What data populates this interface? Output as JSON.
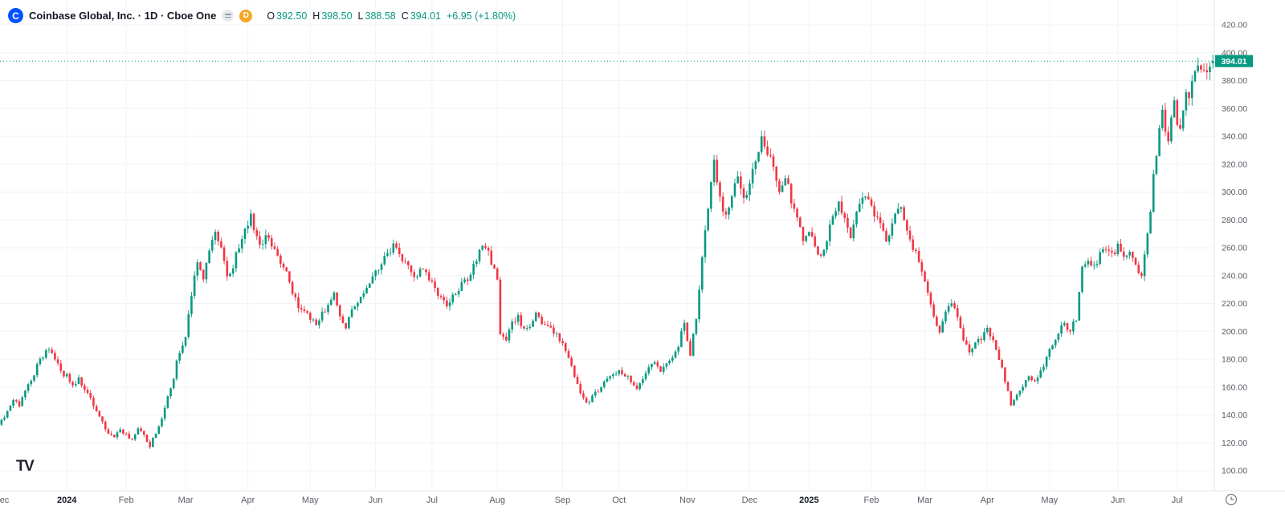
{
  "colors": {
    "up": "#089981",
    "down": "#f23645",
    "blue": "#0052ff",
    "orange": "#f5a623",
    "grid": "#f0f3fa",
    "axis_line": "#e0e3eb",
    "axis_text": "#5a5e66",
    "text": "#131722",
    "badge_text": "#ffffff"
  },
  "legend": {
    "logo_letter": "C",
    "title": "Coinbase Global, Inc. · 1D · Cboe One",
    "delayed_badge": "D",
    "ohlc": {
      "o_label": "O",
      "o": "392.50",
      "h_label": "H",
      "h": "398.50",
      "l_label": "L",
      "l": "388.58",
      "c_label": "C",
      "c": "394.01",
      "change": "+6.95 (+1.80%)"
    }
  },
  "footer": {
    "tv_logo": "TV"
  },
  "chart_data": {
    "type": "candlestick",
    "title": "Coinbase Global, Inc.",
    "interval": "1D",
    "exchange": "Cboe One",
    "last_price": 394.01,
    "last_candle": {
      "open": 392.5,
      "high": 398.5,
      "low": 388.58,
      "close": 394.01
    },
    "y_axis": {
      "ticks": [
        420,
        400,
        380,
        360,
        340,
        320,
        300,
        280,
        260,
        240,
        220,
        200,
        180,
        160,
        140,
        120,
        100
      ],
      "format": "0.00"
    },
    "x_axis": {
      "labels": [
        {
          "label": "ec",
          "day": 1
        },
        {
          "label": "2024",
          "day": 22,
          "year": true
        },
        {
          "label": "Feb",
          "day": 42
        },
        {
          "label": "Mar",
          "day": 62
        },
        {
          "label": "Apr",
          "day": 83
        },
        {
          "label": "May",
          "day": 104
        },
        {
          "label": "Jun",
          "day": 126
        },
        {
          "label": "Jul",
          "day": 145
        },
        {
          "label": "Aug",
          "day": 167
        },
        {
          "label": "Sep",
          "day": 189
        },
        {
          "label": "Oct",
          "day": 208
        },
        {
          "label": "Nov",
          "day": 231
        },
        {
          "label": "Dec",
          "day": 252
        },
        {
          "label": "2025",
          "day": 272,
          "year": true
        },
        {
          "label": "Feb",
          "day": 293
        },
        {
          "label": "Mar",
          "day": 311
        },
        {
          "label": "Apr",
          "day": 332
        },
        {
          "label": "May",
          "day": 353
        },
        {
          "label": "Jun",
          "day": 376
        },
        {
          "label": "Jul",
          "day": 396
        }
      ]
    },
    "total_days": 409,
    "price_path_anchors": [
      [
        0,
        136
      ],
      [
        2,
        143
      ],
      [
        4,
        150
      ],
      [
        6,
        147
      ],
      [
        8,
        156
      ],
      [
        10,
        166
      ],
      [
        12,
        175
      ],
      [
        14,
        183
      ],
      [
        16,
        187
      ],
      [
        18,
        179
      ],
      [
        20,
        171
      ],
      [
        22,
        168
      ],
      [
        24,
        161
      ],
      [
        26,
        166
      ],
      [
        28,
        157
      ],
      [
        30,
        151
      ],
      [
        32,
        143
      ],
      [
        34,
        134
      ],
      [
        36,
        128
      ],
      [
        38,
        125
      ],
      [
        40,
        129
      ],
      [
        42,
        126
      ],
      [
        44,
        121
      ],
      [
        46,
        131
      ],
      [
        48,
        126
      ],
      [
        50,
        118
      ],
      [
        52,
        127
      ],
      [
        54,
        139
      ],
      [
        56,
        152
      ],
      [
        58,
        168
      ],
      [
        60,
        186
      ],
      [
        62,
        198
      ],
      [
        64,
        225
      ],
      [
        66,
        251
      ],
      [
        68,
        237
      ],
      [
        70,
        257
      ],
      [
        72,
        269
      ],
      [
        74,
        261
      ],
      [
        76,
        237
      ],
      [
        78,
        247
      ],
      [
        80,
        261
      ],
      [
        82,
        272
      ],
      [
        84,
        283
      ],
      [
        86,
        268
      ],
      [
        88,
        262
      ],
      [
        90,
        270
      ],
      [
        92,
        257
      ],
      [
        94,
        251
      ],
      [
        96,
        243
      ],
      [
        98,
        229
      ],
      [
        100,
        217
      ],
      [
        102,
        213
      ],
      [
        104,
        209
      ],
      [
        106,
        205
      ],
      [
        108,
        213
      ],
      [
        110,
        219
      ],
      [
        112,
        226
      ],
      [
        114,
        209
      ],
      [
        116,
        204
      ],
      [
        118,
        215
      ],
      [
        120,
        223
      ],
      [
        122,
        229
      ],
      [
        124,
        237
      ],
      [
        126,
        243
      ],
      [
        128,
        249
      ],
      [
        130,
        255
      ],
      [
        132,
        261
      ],
      [
        134,
        257
      ],
      [
        136,
        249
      ],
      [
        138,
        243
      ],
      [
        140,
        239
      ],
      [
        142,
        245
      ],
      [
        144,
        239
      ],
      [
        146,
        231
      ],
      [
        148,
        225
      ],
      [
        150,
        220
      ],
      [
        152,
        225
      ],
      [
        154,
        231
      ],
      [
        156,
        236
      ],
      [
        158,
        241
      ],
      [
        160,
        251
      ],
      [
        162,
        261
      ],
      [
        164,
        255
      ],
      [
        166,
        245
      ],
      [
        167,
        239
      ],
      [
        168,
        199
      ],
      [
        170,
        195
      ],
      [
        172,
        205
      ],
      [
        174,
        211
      ],
      [
        176,
        201
      ],
      [
        178,
        205
      ],
      [
        180,
        211
      ],
      [
        182,
        207
      ],
      [
        184,
        203
      ],
      [
        186,
        199
      ],
      [
        188,
        194
      ],
      [
        190,
        185
      ],
      [
        192,
        175
      ],
      [
        194,
        163
      ],
      [
        196,
        151
      ],
      [
        198,
        149
      ],
      [
        200,
        156
      ],
      [
        202,
        161
      ],
      [
        204,
        165
      ],
      [
        206,
        169
      ],
      [
        208,
        173
      ],
      [
        210,
        169
      ],
      [
        212,
        164
      ],
      [
        214,
        160
      ],
      [
        216,
        167
      ],
      [
        218,
        175
      ],
      [
        220,
        178
      ],
      [
        222,
        171
      ],
      [
        224,
        175
      ],
      [
        226,
        181
      ],
      [
        228,
        191
      ],
      [
        230,
        205
      ],
      [
        232,
        183
      ],
      [
        234,
        209
      ],
      [
        236,
        254
      ],
      [
        238,
        289
      ],
      [
        240,
        324
      ],
      [
        242,
        297
      ],
      [
        244,
        281
      ],
      [
        246,
        299
      ],
      [
        248,
        311
      ],
      [
        250,
        295
      ],
      [
        252,
        305
      ],
      [
        254,
        325
      ],
      [
        256,
        337
      ],
      [
        258,
        329
      ],
      [
        260,
        315
      ],
      [
        262,
        301
      ],
      [
        264,
        311
      ],
      [
        266,
        295
      ],
      [
        268,
        281
      ],
      [
        270,
        267
      ],
      [
        272,
        274
      ],
      [
        274,
        261
      ],
      [
        276,
        254
      ],
      [
        278,
        267
      ],
      [
        280,
        283
      ],
      [
        282,
        293
      ],
      [
        284,
        281
      ],
      [
        286,
        269
      ],
      [
        288,
        287
      ],
      [
        290,
        299
      ],
      [
        292,
        295
      ],
      [
        294,
        285
      ],
      [
        296,
        275
      ],
      [
        298,
        265
      ],
      [
        300,
        275
      ],
      [
        302,
        291
      ],
      [
        304,
        281
      ],
      [
        306,
        265
      ],
      [
        308,
        255
      ],
      [
        310,
        245
      ],
      [
        312,
        225
      ],
      [
        314,
        209
      ],
      [
        316,
        199
      ],
      [
        318,
        213
      ],
      [
        320,
        219
      ],
      [
        322,
        210
      ],
      [
        324,
        195
      ],
      [
        326,
        185
      ],
      [
        328,
        190
      ],
      [
        330,
        195
      ],
      [
        332,
        201
      ],
      [
        334,
        196
      ],
      [
        336,
        181
      ],
      [
        338,
        165
      ],
      [
        340,
        147
      ],
      [
        342,
        153
      ],
      [
        344,
        161
      ],
      [
        346,
        168
      ],
      [
        348,
        163
      ],
      [
        350,
        172
      ],
      [
        352,
        180
      ],
      [
        354,
        192
      ],
      [
        356,
        200
      ],
      [
        358,
        206
      ],
      [
        360,
        200
      ],
      [
        362,
        210
      ],
      [
        364,
        246
      ],
      [
        366,
        252
      ],
      [
        368,
        246
      ],
      [
        370,
        254
      ],
      [
        372,
        260
      ],
      [
        374,
        255
      ],
      [
        376,
        260
      ],
      [
        378,
        252
      ],
      [
        380,
        258
      ],
      [
        382,
        248
      ],
      [
        384,
        240
      ],
      [
        386,
        268
      ],
      [
        388,
        310
      ],
      [
        390,
        345
      ],
      [
        391,
        358
      ],
      [
        392,
        345
      ],
      [
        393,
        338
      ],
      [
        394,
        352
      ],
      [
        395,
        362
      ],
      [
        396,
        352
      ],
      [
        397,
        342
      ],
      [
        398,
        356
      ],
      [
        399,
        370
      ],
      [
        400,
        364
      ],
      [
        401,
        377
      ],
      [
        402,
        387
      ],
      [
        403,
        392
      ],
      [
        404,
        390
      ],
      [
        405,
        386
      ],
      [
        406,
        390
      ],
      [
        407,
        392
      ],
      [
        408,
        394.01
      ]
    ]
  }
}
